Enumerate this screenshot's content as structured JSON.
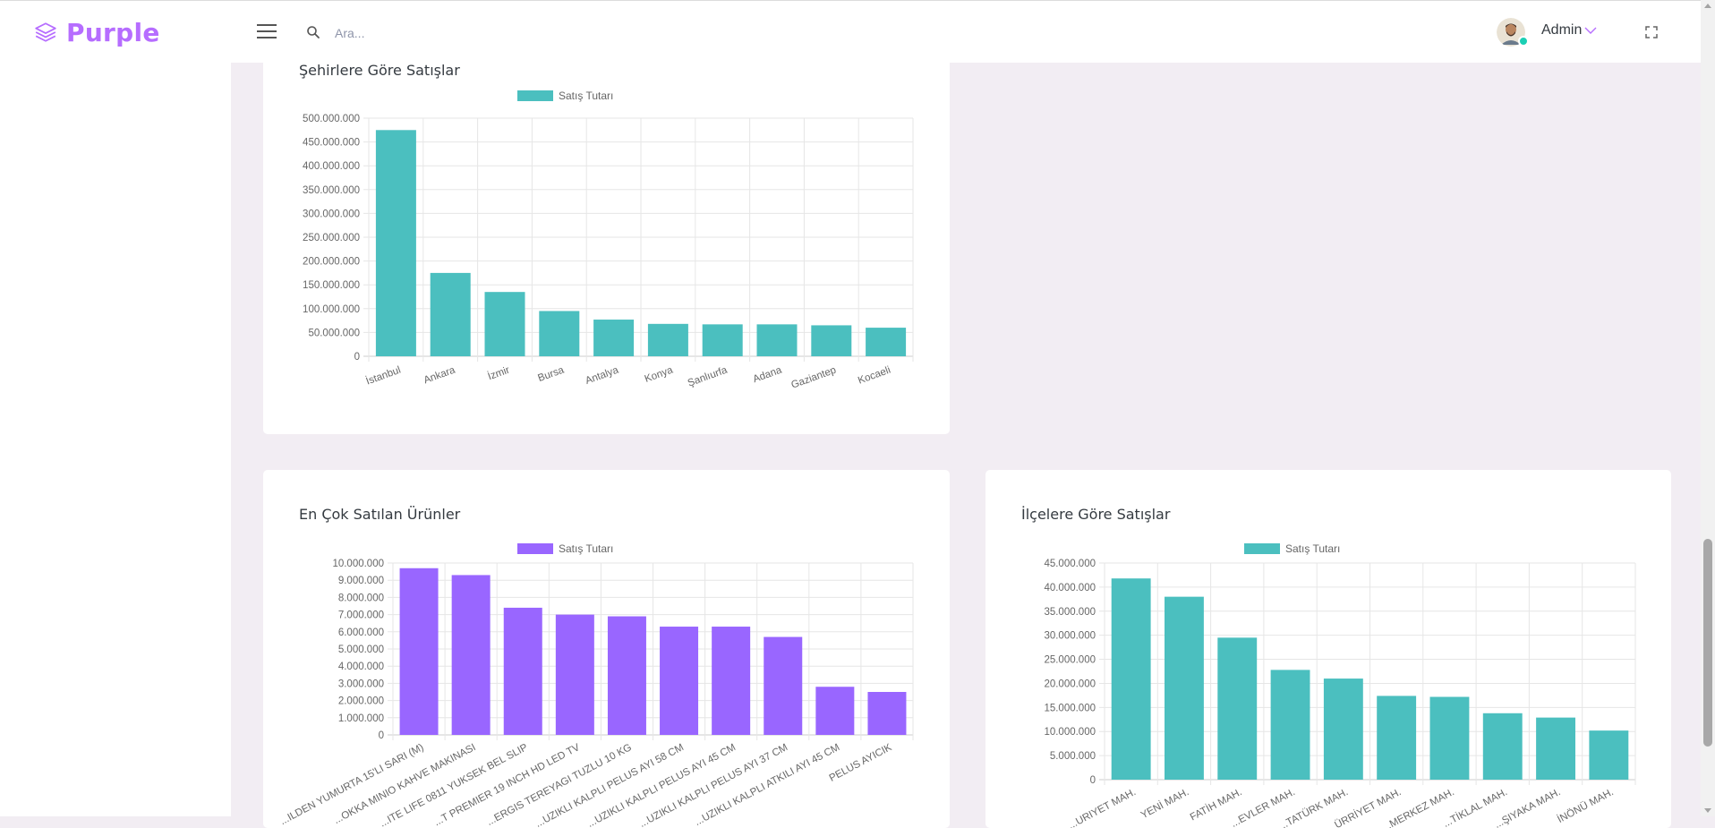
{
  "brand": {
    "name": "Purple",
    "color": "#b66dff"
  },
  "header": {
    "search_placeholder": "Ara...",
    "user_name": "Admin",
    "icons": [
      "menu-icon",
      "search-icon",
      "chevron-down-icon",
      "fullscreen-icon"
    ]
  },
  "colors": {
    "teal": "#4bbfbf",
    "purple": "#9966ff",
    "page_bg": "#f2edf3"
  },
  "cards": {
    "cities": {
      "title": "Şehirlere Göre Satışlar"
    },
    "products": {
      "title": "En Çok Satılan Ürünler"
    },
    "districts": {
      "title": "İlçelere Göre Satışlar"
    }
  },
  "chart_data": [
    {
      "type": "bar",
      "title": "Şehirlere Göre Satışlar",
      "legend": "Satış Tutarı",
      "legend_position": "top",
      "color": "#4bbfbf",
      "categories": [
        "İstanbul",
        "Ankara",
        "İzmir",
        "Bursa",
        "Antalya",
        "Konya",
        "Şanlıurfa",
        "Adana",
        "Gaziantep",
        "Kocaeli"
      ],
      "values": [
        475000000,
        175000000,
        135000000,
        95000000,
        77000000,
        68000000,
        67000000,
        67000000,
        65000000,
        60000000
      ],
      "ylim": [
        0,
        500000000
      ],
      "yticks": [
        "0",
        "50.000.000",
        "100.000.000",
        "150.000.000",
        "200.000.000",
        "250.000.000",
        "300.000.000",
        "350.000.000",
        "400.000.000",
        "450.000.000",
        "500.000.000"
      ],
      "grid": true
    },
    {
      "type": "bar",
      "title": "En Çok Satılan Ürünler",
      "legend": "Satış Tutarı",
      "legend_position": "top",
      "color": "#9966ff",
      "categories": [
        "...ILDEN YUMURTA 15'LI SARI (M)",
        "...OKKA MINIO KAHVE MAKINASI",
        "...ITE LIFE 0811 YUKSEK BEL SLIP",
        "...T PREMIER 19 INCH HD LED TV",
        "...ERGIS TEREYAGI TUZLU 10 KG",
        "...UZIKLI KALPLI PELUS AYI 58 CM",
        "...UZIKLI KALPLI PELUS AYI 45 CM",
        "...UZIKLI KALPLI PELUS AYI 37 CM",
        "...UZIKLI KALPLI ATKILI AYI 45 CM",
        "PELUS AYICIK"
      ],
      "values": [
        9700000,
        9300000,
        7400000,
        7000000,
        6900000,
        6300000,
        6300000,
        5700000,
        2800000,
        2500000
      ],
      "ylim": [
        0,
        10000000
      ],
      "yticks": [
        "0",
        "1.000.000",
        "2.000.000",
        "3.000.000",
        "4.000.000",
        "5.000.000",
        "6.000.000",
        "7.000.000",
        "8.000.000",
        "9.000.000",
        "10.000.000"
      ],
      "grid": true
    },
    {
      "type": "bar",
      "title": "İlçelere Göre Satışlar",
      "legend": "Satış Tutarı",
      "legend_position": "top",
      "color": "#4bbfbf",
      "categories": [
        "...URIYET MAH.",
        "YENİ MAH.",
        "FATİH MAH.",
        "...EVLER MAH.",
        "...TATÜRK MAH.",
        "...ÜRRİYET MAH.",
        "...MERKEZ MAH.",
        "...TİKLAL MAH.",
        "...ŞIYAKA MAH.",
        "İNÖNÜ MAH."
      ],
      "values": [
        41800000,
        38000000,
        29500000,
        22800000,
        21000000,
        17400000,
        17200000,
        13800000,
        12900000,
        10200000
      ],
      "ylim": [
        0,
        45000000
      ],
      "yticks": [
        "0",
        "5.000.000",
        "10.000.000",
        "15.000.000",
        "20.000.000",
        "25.000.000",
        "30.000.000",
        "35.000.000",
        "40.000.000",
        "45.000.000"
      ],
      "grid": true
    }
  ]
}
